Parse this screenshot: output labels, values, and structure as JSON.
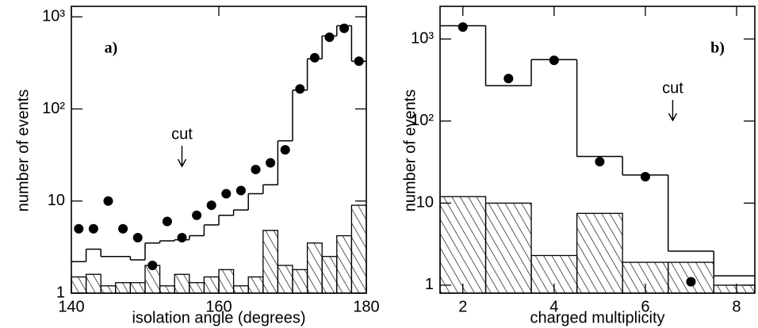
{
  "chart_data": [
    {
      "type": "histogram",
      "label": "a)",
      "x_label": "isolation angle (degrees)",
      "y_label": "number of events",
      "log_y": true,
      "xlim": [
        140,
        180
      ],
      "ylim": [
        1,
        1300
      ],
      "xticks": [
        140,
        160,
        180
      ],
      "yticks": [
        1,
        10,
        {
          "value": 100,
          "label": "10²"
        },
        {
          "value": 1000,
          "label": "10³"
        }
      ],
      "bins": [
        140,
        142,
        144,
        146,
        148,
        150,
        152,
        154,
        156,
        158,
        160,
        162,
        164,
        166,
        168,
        170,
        172,
        174,
        176,
        178,
        180
      ],
      "histograms": [
        {
          "style": "step",
          "values": [
            2.2,
            3,
            2.5,
            2.5,
            2.3,
            3.5,
            3.7,
            3.8,
            4.2,
            5.5,
            7,
            8,
            12,
            15,
            45,
            160,
            350,
            620,
            800,
            330
          ]
        },
        {
          "style": "hatched",
          "values": [
            1.5,
            1.6,
            1.2,
            1.3,
            1.3,
            2,
            1.2,
            1.6,
            1.3,
            1.5,
            1.8,
            1.2,
            1.5,
            4.8,
            2,
            1.8,
            3.5,
            2.5,
            4.2,
            9
          ]
        }
      ],
      "points": {
        "x": [
          141,
          143,
          145,
          147,
          149,
          151,
          153,
          155,
          157,
          159,
          161,
          163,
          165,
          167,
          169,
          171,
          173,
          175,
          177,
          179
        ],
        "values": [
          5,
          5,
          10,
          5,
          4,
          2,
          6,
          4,
          7,
          9,
          12,
          13,
          22,
          26,
          36,
          165,
          360,
          600,
          750,
          330
        ]
      },
      "annotation": {
        "text": "cut",
        "x": 155
      }
    },
    {
      "type": "histogram",
      "label": "b)",
      "x_label": "charged multiplicity",
      "y_label": "number of events",
      "log_y": true,
      "xlim": [
        1.5,
        8.4
      ],
      "ylim": [
        0.8,
        2500
      ],
      "xticks": [
        2,
        4,
        6,
        8
      ],
      "yticks": [
        1,
        10,
        {
          "value": 100,
          "label": "10²"
        },
        {
          "value": 1000,
          "label": "10³"
        }
      ],
      "bins": [
        1.5,
        2.5,
        3.5,
        4.5,
        5.5,
        6.5,
        7.5,
        8.5
      ],
      "histograms": [
        {
          "style": "step",
          "values": [
            1450,
            270,
            560,
            37,
            22,
            2.6,
            1.3
          ]
        },
        {
          "style": "hatched",
          "values": [
            12,
            10,
            2.3,
            7.5,
            1.9,
            1.9,
            1.0
          ]
        }
      ],
      "points": {
        "x": [
          2,
          3,
          4,
          5,
          6,
          7
        ],
        "values": [
          1400,
          330,
          550,
          32,
          21,
          1.1
        ]
      },
      "annotation": {
        "text": "cut",
        "x": 6.6
      }
    }
  ]
}
